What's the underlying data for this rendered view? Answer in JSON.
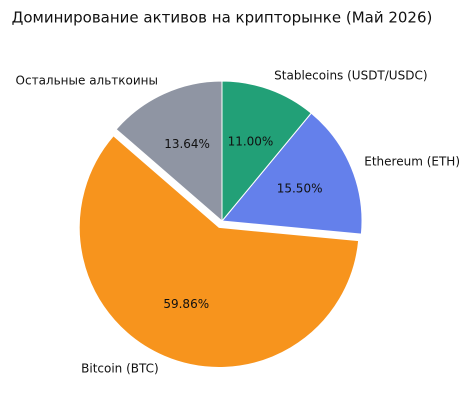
{
  "chart_data": {
    "type": "pie",
    "title": "Доминирование активов на крипторынке (Май 2026)",
    "categories": [
      "Остальные альткоины",
      "Bitcoin (BTC)",
      "Ethereum (ETH)",
      "Stablecoins (USDT/USDC)"
    ],
    "values": [
      13.64,
      59.86,
      15.5,
      11.0
    ],
    "value_labels": [
      "13.64%",
      "59.86%",
      "15.50%",
      "11.00%"
    ],
    "colors": [
      "#8f95a3",
      "#f7941d",
      "#6480eb",
      "#22a077"
    ],
    "explode": [
      0,
      0.05,
      0,
      0
    ]
  }
}
